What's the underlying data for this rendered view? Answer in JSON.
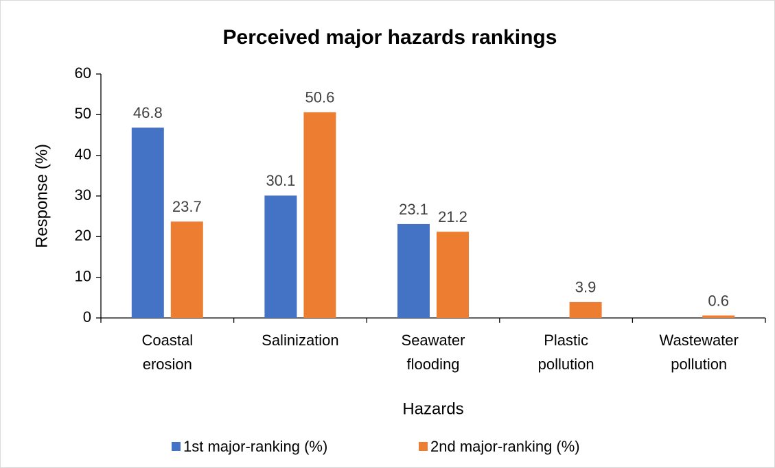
{
  "chart_data": {
    "type": "bar",
    "title": "Perceived major hazards rankings",
    "x_label": "Hazards",
    "y_label": "Response (%)",
    "categories": [
      "Coastal erosion",
      "Salinization",
      "Seawater flooding",
      "Plastic pollution",
      "Wastewater pollution"
    ],
    "series": [
      {
        "name": "1st major-ranking (%)",
        "color": "#4472c4",
        "values": [
          46.8,
          30.1,
          23.1,
          null,
          null
        ]
      },
      {
        "name": "2nd major-ranking (%)",
        "color": "#ed7d31",
        "values": [
          23.7,
          50.6,
          21.2,
          3.9,
          0.6
        ]
      }
    ],
    "ylim": [
      0,
      60
    ],
    "yticks": [
      0,
      10,
      20,
      30,
      40,
      50,
      60
    ],
    "grid": false,
    "legend": "bottom"
  }
}
